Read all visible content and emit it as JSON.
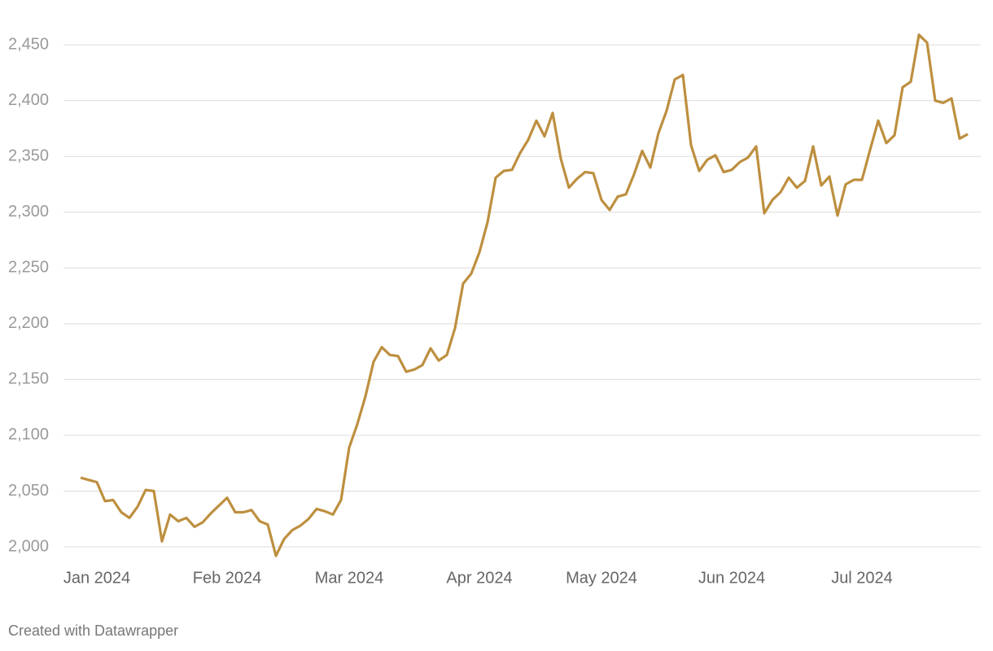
{
  "chart_data": {
    "type": "line",
    "credit": "Created with Datawrapper",
    "categories": [
      null,
      null,
      "Jan 2024",
      null,
      null,
      null,
      null,
      null,
      null,
      null,
      null,
      null,
      null,
      null,
      null,
      null,
      null,
      null,
      "Feb 2024",
      null,
      null,
      null,
      null,
      null,
      null,
      null,
      null,
      null,
      null,
      null,
      null,
      null,
      null,
      "Mar 2024",
      null,
      null,
      null,
      null,
      null,
      null,
      null,
      null,
      null,
      null,
      null,
      null,
      null,
      null,
      null,
      "Apr 2024",
      null,
      null,
      null,
      null,
      null,
      null,
      null,
      null,
      null,
      null,
      null,
      null,
      null,
      null,
      "May 2024",
      null,
      null,
      null,
      null,
      null,
      null,
      null,
      null,
      null,
      null,
      null,
      null,
      null,
      null,
      null,
      "Jun 2024",
      null,
      null,
      null,
      null,
      null,
      null,
      null,
      null,
      null,
      null,
      null,
      null,
      null,
      null,
      null,
      "Jul 2024",
      null,
      null,
      null,
      null,
      null,
      null,
      null,
      null,
      null,
      null,
      null,
      null,
      null
    ],
    "series": [
      {
        "color": "#bd8f3f",
        "values": [
          2062,
          2060,
          2058,
          2041,
          2042,
          2031,
          2026,
          2036,
          2051,
          2050,
          2005,
          2029,
          2023,
          2026,
          2018,
          2022,
          2030,
          2037,
          2044,
          2031,
          2031,
          2033,
          2023,
          2020,
          1992,
          2007,
          2015,
          2019,
          2025,
          2034,
          2032,
          2029,
          2042,
          2089,
          2110,
          2135,
          2166,
          2179,
          2172,
          2171,
          2157,
          2159,
          2163,
          2178,
          2167,
          2172,
          2196,
          2236,
          2245,
          2264,
          2291,
          2331,
          2337,
          2338,
          2353,
          2365,
          2382,
          2368,
          2389,
          2348,
          2322,
          2330,
          2336,
          2335,
          2311,
          2302,
          2314,
          2316,
          2334,
          2355,
          2340,
          2371,
          2391,
          2419,
          2423,
          2360,
          2337,
          2347,
          2351,
          2336,
          2338,
          2345,
          2349,
          2359,
          2299,
          2311,
          2318,
          2331,
          2322,
          2328,
          2359,
          2324,
          2332,
          2297,
          2325,
          2329,
          2329,
          2356,
          2382,
          2362,
          2369,
          2412,
          2417,
          2459,
          2452,
          2400,
          2398,
          2402,
          2366,
          2370
        ]
      }
    ],
    "ylim": [
      1985,
      2480
    ],
    "yticks": [
      {
        "value": 2000,
        "label": "2,000"
      },
      {
        "value": 2050,
        "label": "2,050"
      },
      {
        "value": 2100,
        "label": "2,100"
      },
      {
        "value": 2150,
        "label": "2,150"
      },
      {
        "value": 2200,
        "label": "2,200"
      },
      {
        "value": 2250,
        "label": "2,250"
      },
      {
        "value": 2300,
        "label": "2,300"
      },
      {
        "value": 2350,
        "label": "2,350"
      },
      {
        "value": 2400,
        "label": "2,400"
      },
      {
        "value": 2450,
        "label": "2,450"
      }
    ],
    "grid": true
  }
}
